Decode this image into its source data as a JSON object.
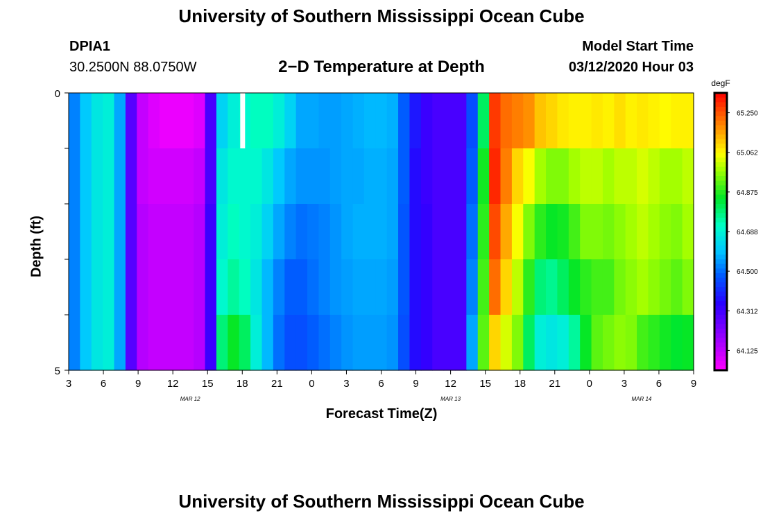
{
  "page": {
    "title_top": "University of Southern Mississippi Ocean Cube",
    "title_bottom": "University of Southern Mississippi Ocean Cube",
    "station_id": "DPIA1",
    "station_coords": "30.2500N 88.0750W",
    "plot_title": "2−D Temperature at Depth",
    "model_start_label": "Model Start Time",
    "model_start_value": "03/12/2020 Hour 03"
  },
  "chart_data": {
    "type": "heatmap",
    "title": "2−D Temperature at Depth",
    "xlabel": "Forecast Time(Z)",
    "ylabel": "Depth (ft)",
    "units": "degF",
    "x_range_hours": [
      0,
      54
    ],
    "y_range_ft": [
      0,
      5
    ],
    "x_tick_labels": [
      "3",
      "6",
      "9",
      "12",
      "15",
      "18",
      "21",
      "0",
      "3",
      "6",
      "9",
      "12",
      "15",
      "18",
      "21",
      "0",
      "3",
      "6",
      "9"
    ],
    "y_tick_labels": [
      "0",
      "5"
    ],
    "date_labels": [
      {
        "text": "MAR 12",
        "hour": 10.5
      },
      {
        "text": "MAR 13",
        "hour": 33
      },
      {
        "text": "MAR 14",
        "hour": 49.5
      }
    ],
    "colorbar": {
      "label": "degF",
      "ticks": [
        "65.250",
        "65.062",
        "64.875",
        "64.688",
        "64.500",
        "64.312",
        "64.125"
      ],
      "min": 64.031,
      "max": 65.344
    },
    "depth_levels_ft": [
      0.5,
      1.5,
      2.5,
      3.5,
      4.5
    ],
    "column_hours": [
      0,
      1,
      2,
      3,
      4,
      5,
      6,
      7,
      8,
      9,
      10,
      11,
      12,
      13,
      14,
      15,
      16,
      17,
      18,
      19,
      20,
      21,
      22,
      23,
      24,
      25,
      26,
      27,
      28,
      29,
      30,
      31,
      32,
      33,
      34,
      35,
      36,
      37,
      38,
      39,
      40,
      41,
      42,
      43,
      44,
      45,
      46,
      47,
      48,
      49,
      50,
      51,
      52,
      53,
      54
    ],
    "temperatures": [
      [
        64.52,
        64.6,
        64.66,
        64.68,
        64.56,
        64.28,
        64.12,
        64.08,
        64.06,
        64.06,
        64.06,
        64.08,
        64.3,
        64.62,
        64.68,
        64.7,
        64.72,
        64.72,
        64.68,
        64.62,
        64.56,
        64.56,
        64.55,
        64.55,
        64.56,
        64.57,
        64.58,
        64.58,
        64.57,
        64.48,
        64.38,
        64.32,
        64.3,
        64.3,
        64.3,
        64.46,
        64.8,
        65.28,
        65.22,
        65.2,
        65.18,
        65.12,
        65.1,
        65.08,
        65.07,
        65.07,
        65.08,
        65.07,
        65.09,
        65.07,
        65.08,
        65.07,
        65.06,
        65.07,
        65.07
      ],
      [
        64.52,
        64.6,
        64.66,
        64.68,
        64.56,
        64.28,
        64.12,
        64.1,
        64.1,
        64.1,
        64.1,
        64.12,
        64.3,
        64.66,
        64.7,
        64.7,
        64.7,
        64.66,
        64.6,
        64.56,
        64.54,
        64.54,
        64.54,
        64.55,
        64.56,
        64.56,
        64.57,
        64.57,
        64.56,
        64.48,
        64.36,
        64.32,
        64.3,
        64.3,
        64.3,
        64.48,
        64.86,
        65.3,
        65.2,
        65.1,
        65.05,
        64.98,
        64.95,
        64.95,
        64.98,
        65.0,
        65.0,
        64.98,
        65.0,
        65.0,
        65.02,
        65.0,
        64.98,
        64.98,
        65.0
      ],
      [
        64.52,
        64.6,
        64.66,
        64.68,
        64.56,
        64.28,
        64.14,
        64.12,
        64.12,
        64.12,
        64.12,
        64.14,
        64.32,
        64.68,
        64.72,
        64.7,
        64.68,
        64.62,
        64.56,
        64.52,
        64.5,
        64.51,
        64.52,
        64.54,
        64.56,
        64.57,
        64.57,
        64.57,
        64.56,
        64.47,
        64.36,
        64.33,
        64.3,
        64.3,
        64.3,
        64.5,
        64.88,
        65.26,
        65.15,
        65.05,
        64.95,
        64.88,
        64.85,
        64.86,
        64.9,
        64.95,
        64.95,
        64.94,
        64.96,
        64.98,
        65.0,
        64.98,
        64.96,
        64.95,
        64.98
      ],
      [
        64.52,
        64.6,
        64.66,
        64.68,
        64.56,
        64.28,
        64.14,
        64.12,
        64.12,
        64.12,
        64.12,
        64.14,
        64.32,
        64.7,
        64.75,
        64.72,
        64.66,
        64.58,
        64.52,
        64.48,
        64.48,
        64.5,
        64.52,
        64.54,
        64.55,
        64.56,
        64.56,
        64.56,
        64.55,
        64.47,
        64.36,
        64.33,
        64.3,
        64.3,
        64.3,
        64.52,
        64.9,
        65.22,
        65.1,
        65.0,
        64.88,
        64.78,
        64.76,
        64.8,
        64.85,
        64.88,
        64.9,
        64.9,
        64.94,
        64.96,
        64.98,
        64.96,
        64.94,
        64.92,
        64.95
      ],
      [
        64.52,
        64.6,
        64.66,
        64.68,
        64.56,
        64.28,
        64.14,
        64.12,
        64.12,
        64.12,
        64.12,
        64.14,
        64.32,
        64.78,
        64.85,
        64.8,
        64.68,
        64.58,
        64.5,
        64.46,
        64.46,
        64.48,
        64.5,
        64.52,
        64.54,
        64.55,
        64.55,
        64.55,
        64.54,
        64.46,
        64.36,
        64.33,
        64.3,
        64.3,
        64.3,
        64.56,
        64.92,
        65.1,
        65.02,
        64.95,
        64.8,
        64.68,
        64.66,
        64.68,
        64.75,
        64.85,
        64.92,
        64.94,
        64.96,
        64.95,
        64.9,
        64.88,
        64.86,
        64.84,
        64.85
      ]
    ],
    "annotation": "white marker bar at hour 15, depth 0–1 ft"
  }
}
